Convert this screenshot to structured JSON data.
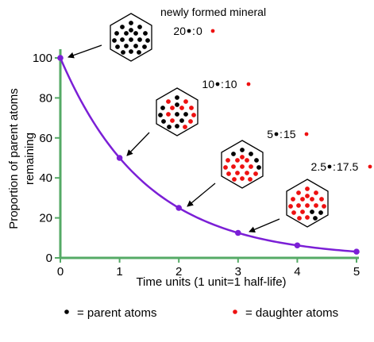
{
  "chart_data": {
    "type": "line",
    "title": "",
    "xlabel": "Time units (1 unit=1 half-life)",
    "ylabel": "Proportion of parent atoms remaining",
    "ylabel_lines": [
      "Proportion of parent atoms",
      "remaining"
    ],
    "x_ticks": [
      "0",
      "1",
      "2",
      "3",
      "4",
      "5"
    ],
    "y_ticks": [
      "0",
      "20",
      "40",
      "60",
      "80",
      "100"
    ],
    "xlim": [
      0,
      5
    ],
    "ylim": [
      0,
      100
    ],
    "x": [
      0,
      1,
      2,
      3,
      4,
      5
    ],
    "y": [
      100,
      50,
      25,
      12.5,
      6.25,
      3.125
    ],
    "line_color": "#7b1fd6",
    "axis_color": "#55aa66",
    "annotations": [
      {
        "title": "newly formed mineral",
        "parent": "20",
        "daughter": "0",
        "points_to_x": 0
      },
      {
        "parent": "10",
        "daughter": "10",
        "points_to_x": 1
      },
      {
        "parent": "5",
        "daughter": "15",
        "points_to_x": 2
      },
      {
        "parent": "2.5",
        "daughter": "17.5",
        "points_to_x": 3
      }
    ]
  },
  "legend": {
    "parent_label": "= parent atoms",
    "daughter_label": "= daughter atoms",
    "parent_color": "#000000",
    "daughter_color": "#ee1111"
  }
}
